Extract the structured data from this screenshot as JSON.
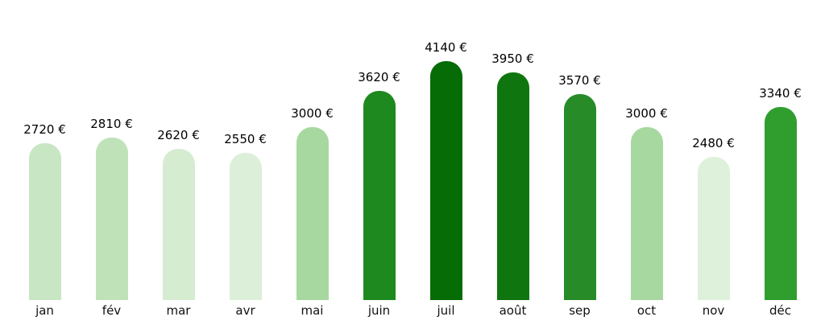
{
  "chart_data": {
    "type": "bar",
    "categories": [
      "jan",
      "fév",
      "mar",
      "avr",
      "mai",
      "juin",
      "juil",
      "août",
      "sep",
      "oct",
      "nov",
      "déc"
    ],
    "values": [
      2720,
      2810,
      2620,
      2550,
      3000,
      3620,
      4140,
      3950,
      3570,
      3000,
      2480,
      3340
    ],
    "value_labels": [
      "2720 €",
      "2810 €",
      "2620 €",
      "2550 €",
      "3000 €",
      "3620 €",
      "4140 €",
      "3950 €",
      "3570 €",
      "3000 €",
      "2480 €",
      "3340 €"
    ],
    "bar_colors": [
      "#c8e6c3",
      "#bfe2b9",
      "#d5ecd1",
      "#dcefd8",
      "#a7d8a0",
      "#1e891e",
      "#066c06",
      "#0f760f",
      "#278c27",
      "#a7d8a0",
      "#def1da",
      "#2f9e2f"
    ],
    "title": "",
    "xlabel": "",
    "ylabel": "",
    "ylim": [
      0,
      4140
    ],
    "grid": false,
    "legend_position": "none",
    "bar_shape": "rounded-top",
    "currency_suffix": "€"
  }
}
